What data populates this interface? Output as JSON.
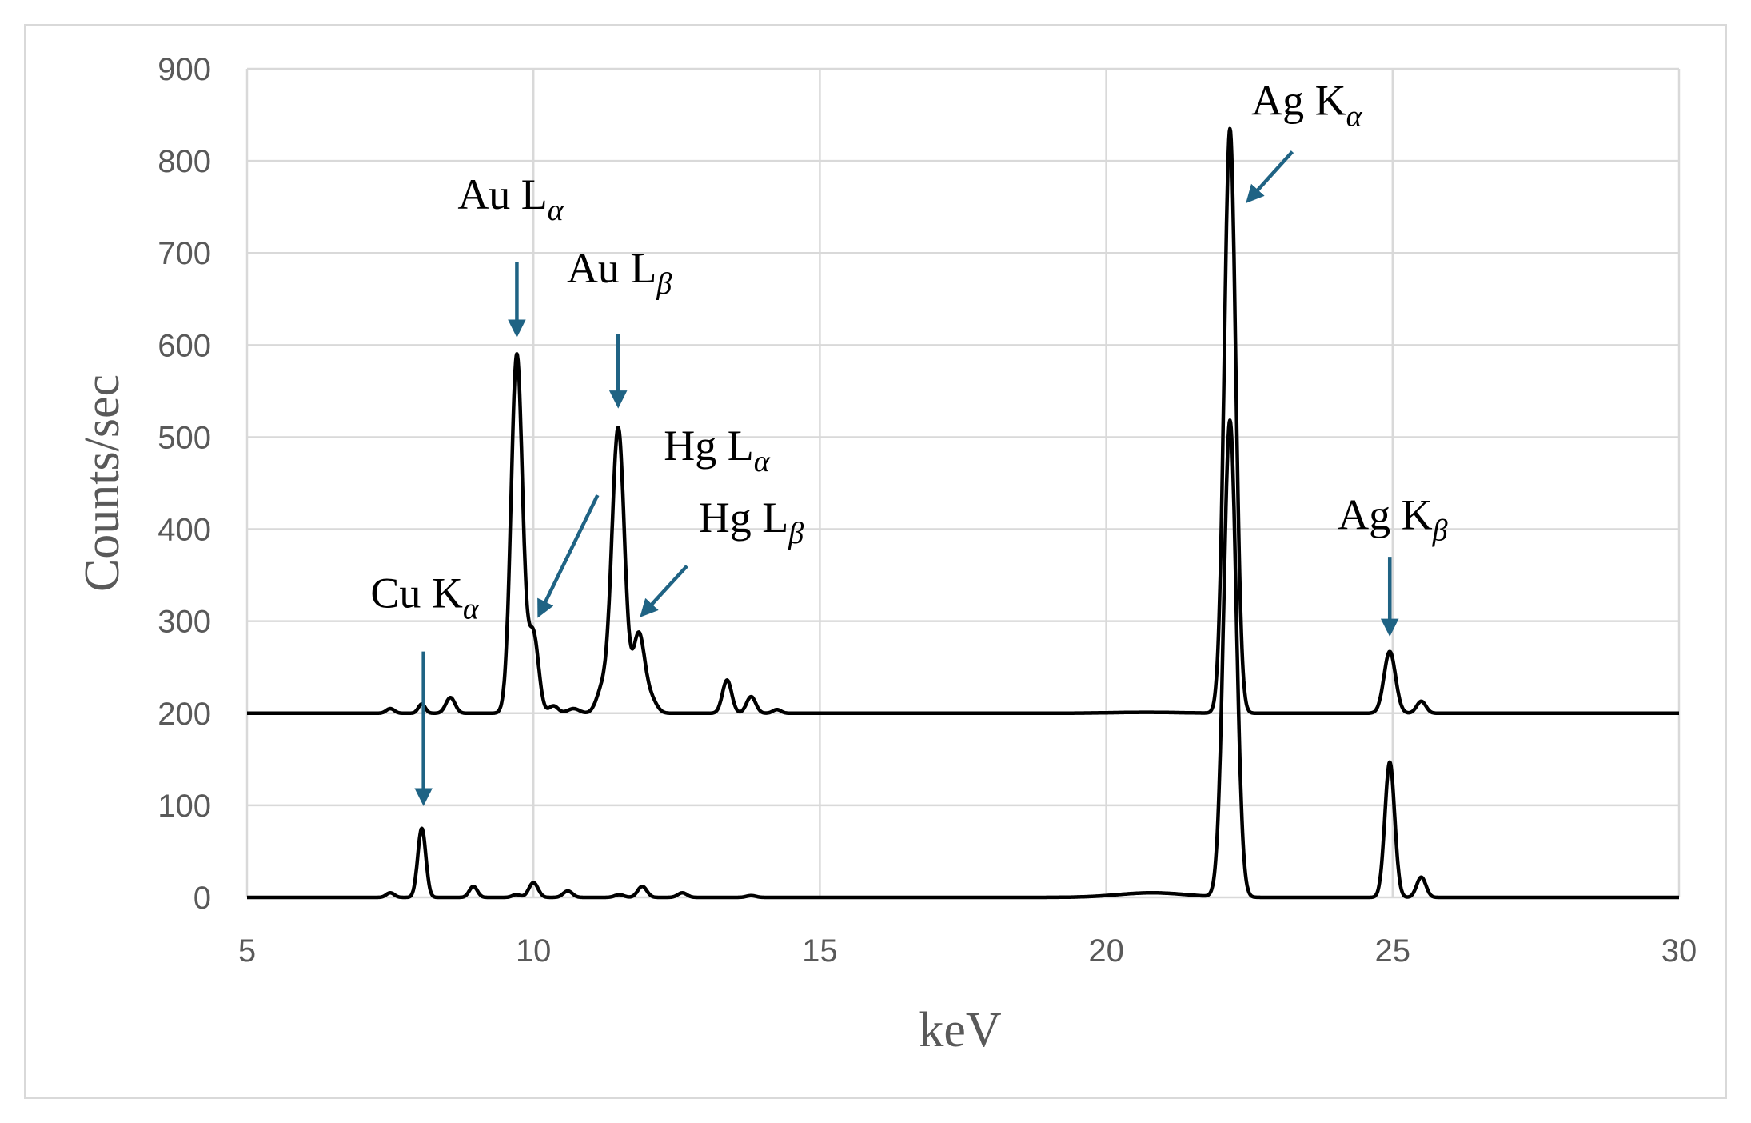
{
  "chart_data": {
    "type": "line",
    "xlabel": "keV",
    "ylabel": "Counts/sec",
    "xlim": [
      5,
      30
    ],
    "ylim": [
      0,
      900
    ],
    "xticks": [
      5,
      10,
      15,
      20,
      25,
      30
    ],
    "yticks": [
      0,
      100,
      200,
      300,
      400,
      500,
      600,
      700,
      800,
      900
    ],
    "grid": true,
    "arrow_color": "#1f6384",
    "line_color": "#000000",
    "series": [
      {
        "baseline": 200,
        "peaks": [
          {
            "x": 7.5,
            "height": 5,
            "width": 0.07
          },
          {
            "x": 8.05,
            "height": 10,
            "width": 0.06
          },
          {
            "x": 8.55,
            "height": 17,
            "width": 0.08
          },
          {
            "x": 9.71,
            "height": 390,
            "width": 0.1
          },
          {
            "x": 10.0,
            "height": 85,
            "width": 0.09
          },
          {
            "x": 10.35,
            "height": 8,
            "width": 0.08
          },
          {
            "x": 10.7,
            "height": 5,
            "width": 0.1
          },
          {
            "x": 11.2,
            "height": 25,
            "width": 0.1
          },
          {
            "x": 11.48,
            "height": 310,
            "width": 0.11
          },
          {
            "x": 11.84,
            "height": 85,
            "width": 0.1
          },
          {
            "x": 12.05,
            "height": 15,
            "width": 0.1
          },
          {
            "x": 13.38,
            "height": 36,
            "width": 0.08
          },
          {
            "x": 13.8,
            "height": 18,
            "width": 0.08
          },
          {
            "x": 14.25,
            "height": 4,
            "width": 0.07
          },
          {
            "x": 20.7,
            "height": 1,
            "width": 0.6
          },
          {
            "x": 22.16,
            "height": 635,
            "width": 0.1
          },
          {
            "x": 24.95,
            "height": 67,
            "width": 0.1
          },
          {
            "x": 25.5,
            "height": 13,
            "width": 0.08
          }
        ]
      },
      {
        "baseline": 0,
        "peaks": [
          {
            "x": 7.5,
            "height": 5,
            "width": 0.07
          },
          {
            "x": 8.05,
            "height": 75,
            "width": 0.07
          },
          {
            "x": 8.95,
            "height": 12,
            "width": 0.07
          },
          {
            "x": 9.7,
            "height": 3,
            "width": 0.07
          },
          {
            "x": 10.0,
            "height": 16,
            "width": 0.08
          },
          {
            "x": 10.6,
            "height": 7,
            "width": 0.08
          },
          {
            "x": 11.5,
            "height": 3,
            "width": 0.08
          },
          {
            "x": 11.9,
            "height": 12,
            "width": 0.08
          },
          {
            "x": 12.6,
            "height": 5,
            "width": 0.08
          },
          {
            "x": 13.8,
            "height": 2,
            "width": 0.08
          },
          {
            "x": 20.8,
            "height": 5,
            "width": 0.6
          },
          {
            "x": 22.16,
            "height": 518,
            "width": 0.11
          },
          {
            "x": 24.95,
            "height": 147,
            "width": 0.085
          },
          {
            "x": 25.5,
            "height": 22,
            "width": 0.08
          }
        ]
      }
    ],
    "annotations": [
      {
        "text": "Au L",
        "sub": "α",
        "label_x": 9.6,
        "label_y": 748,
        "arrow_from": [
          9.71,
          690
        ],
        "arrow_to": [
          9.71,
          612
        ]
      },
      {
        "text": "Au L",
        "sub": "β",
        "label_x": 11.5,
        "label_y": 668,
        "arrow_from": [
          11.48,
          612
        ],
        "arrow_to": [
          11.48,
          535
        ]
      },
      {
        "text": "Hg L",
        "sub": "α",
        "label_x": 13.2,
        "label_y": 475,
        "arrow_from": [
          11.12,
          437
        ],
        "arrow_to": [
          10.1,
          307
        ]
      },
      {
        "text": "Hg L",
        "sub": "β",
        "label_x": 13.8,
        "label_y": 397,
        "arrow_from": [
          12.68,
          360
        ],
        "arrow_to": [
          11.9,
          307
        ]
      },
      {
        "text": "Cu K",
        "sub": "α",
        "label_x": 8.1,
        "label_y": 315,
        "arrow_from": [
          8.08,
          267
        ],
        "arrow_to": [
          8.08,
          103
        ]
      },
      {
        "text": "Ag K",
        "sub": "α",
        "label_x": 23.5,
        "label_y": 850,
        "arrow_from": [
          23.25,
          810
        ],
        "arrow_to": [
          22.48,
          757
        ]
      },
      {
        "text": "Ag K",
        "sub": "β",
        "label_x": 25.0,
        "label_y": 400,
        "arrow_from": [
          24.95,
          370
        ],
        "arrow_to": [
          24.95,
          287
        ]
      }
    ]
  }
}
